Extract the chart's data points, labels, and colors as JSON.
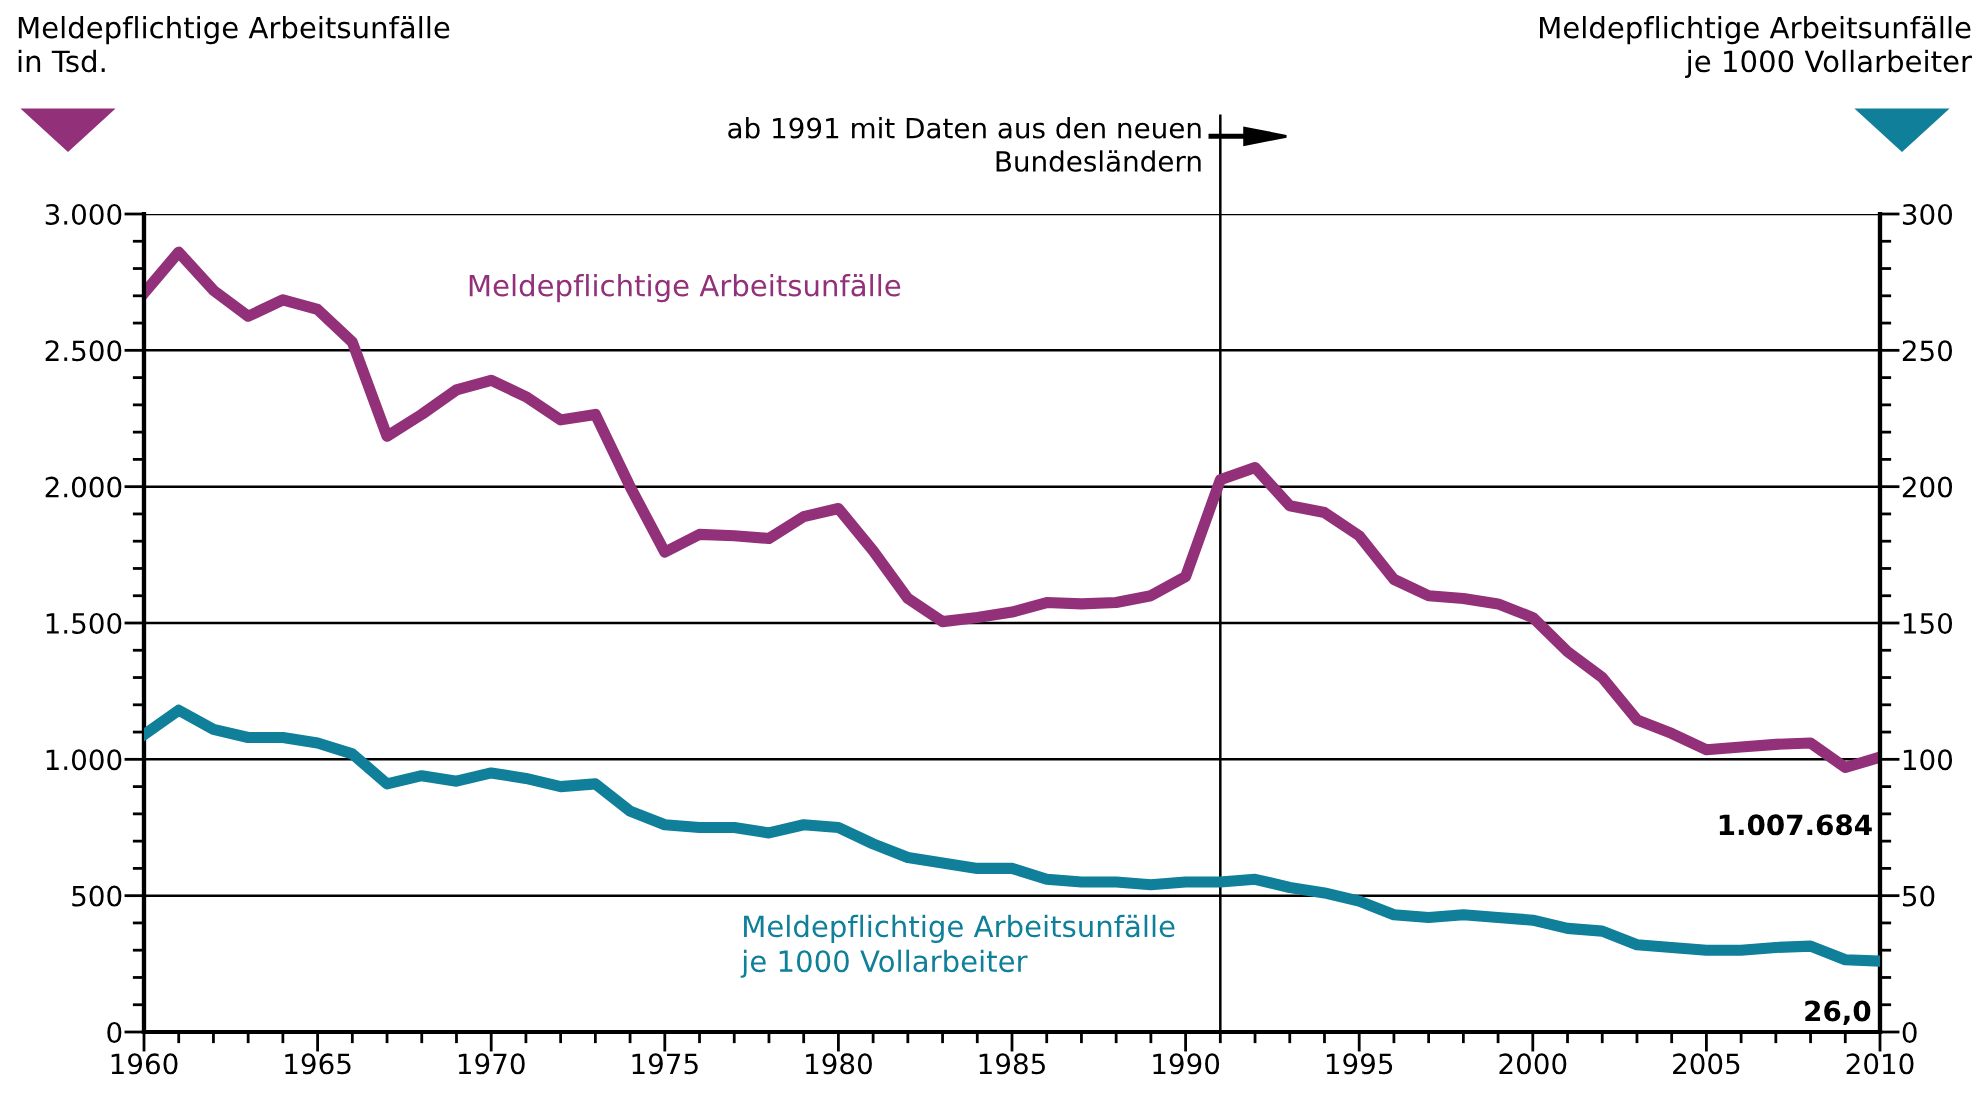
{
  "chart_data": {
    "type": "line",
    "x": [
      1960,
      1961,
      1962,
      1963,
      1964,
      1965,
      1966,
      1967,
      1968,
      1969,
      1970,
      1971,
      1972,
      1973,
      1974,
      1975,
      1976,
      1977,
      1978,
      1979,
      1980,
      1981,
      1982,
      1983,
      1984,
      1985,
      1986,
      1987,
      1988,
      1989,
      1990,
      1991,
      1992,
      1993,
      1994,
      1995,
      1996,
      1997,
      1998,
      1999,
      2000,
      2001,
      2002,
      2003,
      2004,
      2005,
      2006,
      2007,
      2008,
      2009,
      2010
    ],
    "series": [
      {
        "name": "Meldepflichtige Arbeitsunfälle",
        "color": "#93307a",
        "values": [
          2710,
          2860,
          2720,
          2625,
          2685,
          2650,
          2530,
          2185,
          2265,
          2355,
          2390,
          2330,
          2245,
          2265,
          2000,
          1760,
          1825,
          1820,
          1810,
          1890,
          1920,
          1765,
          1590,
          1505,
          1520,
          1540,
          1575,
          1570,
          1575,
          1600,
          1670,
          2025,
          2070,
          1930,
          1905,
          1820,
          1660,
          1600,
          1590,
          1570,
          1520,
          1395,
          1300,
          1145,
          1095,
          1035,
          1045,
          1055,
          1060,
          970,
          1008
        ],
        "value_labels": [
          null,
          null,
          null,
          null,
          null,
          null,
          null,
          null,
          null,
          null,
          null,
          null,
          null,
          null,
          null,
          null,
          null,
          null,
          null,
          null,
          null,
          null,
          null,
          null,
          null,
          null,
          null,
          null,
          null,
          null,
          null,
          null,
          null,
          null,
          null,
          null,
          null,
          null,
          null,
          null,
          null,
          null,
          null,
          null,
          null,
          null,
          null,
          null,
          null,
          null,
          null
        ]
      },
      {
        "name": "Meldepflichtige Arbeitsunfälle\nje 1000 Vollarbeiter",
        "color": "#0f7f9a",
        "axis": "y2",
        "values": [
          109,
          118,
          111,
          108,
          108,
          106,
          102,
          91,
          94,
          92,
          95,
          93,
          90,
          91,
          81,
          76,
          75,
          75,
          73,
          76,
          75,
          69,
          64,
          62,
          60,
          60,
          56,
          55,
          55,
          54,
          55,
          55,
          56,
          53,
          51,
          48,
          43,
          42,
          43,
          42,
          41,
          38,
          37,
          32,
          31,
          30,
          30,
          31,
          31.5,
          26.5,
          26.0
        ],
        "value_labels": [
          null,
          null,
          null,
          null,
          null,
          null,
          null,
          null,
          null,
          null,
          null,
          null,
          null,
          null,
          null,
          null,
          null,
          null,
          null,
          null,
          null,
          null,
          null,
          null,
          null,
          null,
          null,
          null,
          null,
          null,
          null,
          null,
          null,
          null,
          null,
          null,
          null,
          null,
          null,
          null,
          null,
          null,
          null,
          null,
          null,
          null,
          null,
          null,
          null,
          null,
          "26,0"
        ]
      }
    ],
    "annotations": [
      "1.007.684"
    ],
    "ylabel": "Meldepflichtige Arbeitsunfälle\nin Tsd.",
    "y2label": "Meldepflichtige Arbeitsunfälle\nje 1000 Vollarbeiter",
    "xlim": [
      1960,
      2010
    ],
    "xticks": [
      1960,
      {
        "value": 1961,
        "label": null
      },
      {
        "value": 1962,
        "label": null
      },
      {
        "value": 1963,
        "label": null
      },
      {
        "value": 1964,
        "label": null
      },
      1965,
      {
        "value": 1966,
        "label": null
      },
      {
        "value": 1967,
        "label": null
      },
      {
        "value": 1968,
        "label": null
      },
      {
        "value": 1969,
        "label": null
      },
      1970,
      {
        "value": 1971,
        "label": null
      },
      {
        "value": 1972,
        "label": null
      },
      {
        "value": 1973,
        "label": null
      },
      {
        "value": 1974,
        "label": null
      },
      1975,
      {
        "value": 1976,
        "label": null
      },
      {
        "value": 1977,
        "label": null
      },
      {
        "value": 1978,
        "label": null
      },
      {
        "value": 1979,
        "label": null
      },
      1980,
      {
        "value": 1981,
        "label": null
      },
      {
        "value": 1982,
        "label": null
      },
      {
        "value": 1983,
        "label": null
      },
      {
        "value": 1984,
        "label": null
      },
      1985,
      {
        "value": 1986,
        "label": null
      },
      {
        "value": 1987,
        "label": null
      },
      {
        "value": 1988,
        "label": null
      },
      {
        "value": 1989,
        "label": null
      },
      1990,
      {
        "value": 1991,
        "label": null
      },
      {
        "value": 1992,
        "label": null
      },
      {
        "value": 1993,
        "label": null
      },
      {
        "value": 1994,
        "label": null
      },
      1995,
      {
        "value": 1996,
        "label": null
      },
      {
        "value": 1997,
        "label": null
      },
      {
        "value": 1998,
        "label": null
      },
      {
        "value": 1999,
        "label": null
      },
      2000,
      {
        "value": 2001,
        "label": null
      },
      {
        "value": 2002,
        "label": null
      },
      {
        "value": 2003,
        "label": null
      },
      {
        "value": 2004,
        "label": null
      },
      2005,
      {
        "value": 2006,
        "label": null
      },
      {
        "value": 2007,
        "label": null
      },
      {
        "value": 2008,
        "label": null
      },
      {
        "value": 2009,
        "label": null
      },
      2010
    ],
    "ylim": [
      0,
      3000
    ],
    "yticks": [
      0,
      {
        "value": 100,
        "label": null
      },
      {
        "value": 200,
        "label": null
      },
      {
        "value": 300,
        "label": null
      },
      {
        "value": 400,
        "label": null
      },
      500,
      {
        "value": 600,
        "label": null
      },
      {
        "value": 700,
        "label": null
      },
      {
        "value": 800,
        "label": null
      },
      {
        "value": 900,
        "label": null
      },
      {
        "value": 1000,
        "label": "1.000"
      },
      {
        "value": 1100,
        "label": null
      },
      {
        "value": 1200,
        "label": null
      },
      {
        "value": 1300,
        "label": null
      },
      {
        "value": 1400,
        "label": null
      },
      {
        "value": 1500,
        "label": "1.500"
      },
      {
        "value": 1600,
        "label": null
      },
      {
        "value": 1700,
        "label": null
      },
      {
        "value": 1800,
        "label": null
      },
      {
        "value": 1900,
        "label": null
      },
      {
        "value": 2000,
        "label": "2.000"
      },
      {
        "value": 2100,
        "label": null
      },
      {
        "value": 2200,
        "label": null
      },
      {
        "value": 2300,
        "label": null
      },
      {
        "value": 2400,
        "label": null
      },
      {
        "value": 2500,
        "label": "2.500"
      },
      {
        "value": 2600,
        "label": null
      },
      {
        "value": 2700,
        "label": null
      },
      {
        "value": 2800,
        "label": null
      },
      {
        "value": 2900,
        "label": null
      },
      {
        "value": 3000,
        "label": "3.000"
      }
    ],
    "y2lim": [
      0,
      300
    ],
    "y2ticks": [
      0,
      {
        "value": 10,
        "label": null
      },
      {
        "value": 20,
        "label": null
      },
      {
        "value": 30,
        "label": null
      },
      {
        "value": 40,
        "label": null
      },
      50,
      {
        "value": 60,
        "label": null
      },
      {
        "value": 70,
        "label": null
      },
      {
        "value": 80,
        "label": null
      },
      {
        "value": 90,
        "label": null
      },
      100,
      {
        "value": 110,
        "label": null
      },
      {
        "value": 120,
        "label": null
      },
      {
        "value": 130,
        "label": null
      },
      {
        "value": 140,
        "label": null
      },
      150,
      {
        "value": 160,
        "label": null
      },
      {
        "value": 170,
        "label": null
      },
      {
        "value": 180,
        "label": null
      },
      {
        "value": 190,
        "label": null
      },
      200,
      {
        "value": 210,
        "label": null
      },
      {
        "value": 220,
        "label": null
      },
      {
        "value": 230,
        "label": null
      },
      {
        "value": 240,
        "label": null
      },
      250,
      {
        "value": 260,
        "label": null
      },
      {
        "value": 270,
        "label": null
      },
      {
        "value": 280,
        "label": null
      },
      {
        "value": 290,
        "label": null
      },
      300
    ],
    "ref_lines": [
      {
        "axis": "x",
        "value": 1991,
        "label": "ab 1991 mit Daten aus den neuen\nBundesländern",
        "color": "#000000"
      }
    ],
    "grid": "y",
    "legend": false,
    "marker": "none",
    "line_style": "solid"
  }
}
